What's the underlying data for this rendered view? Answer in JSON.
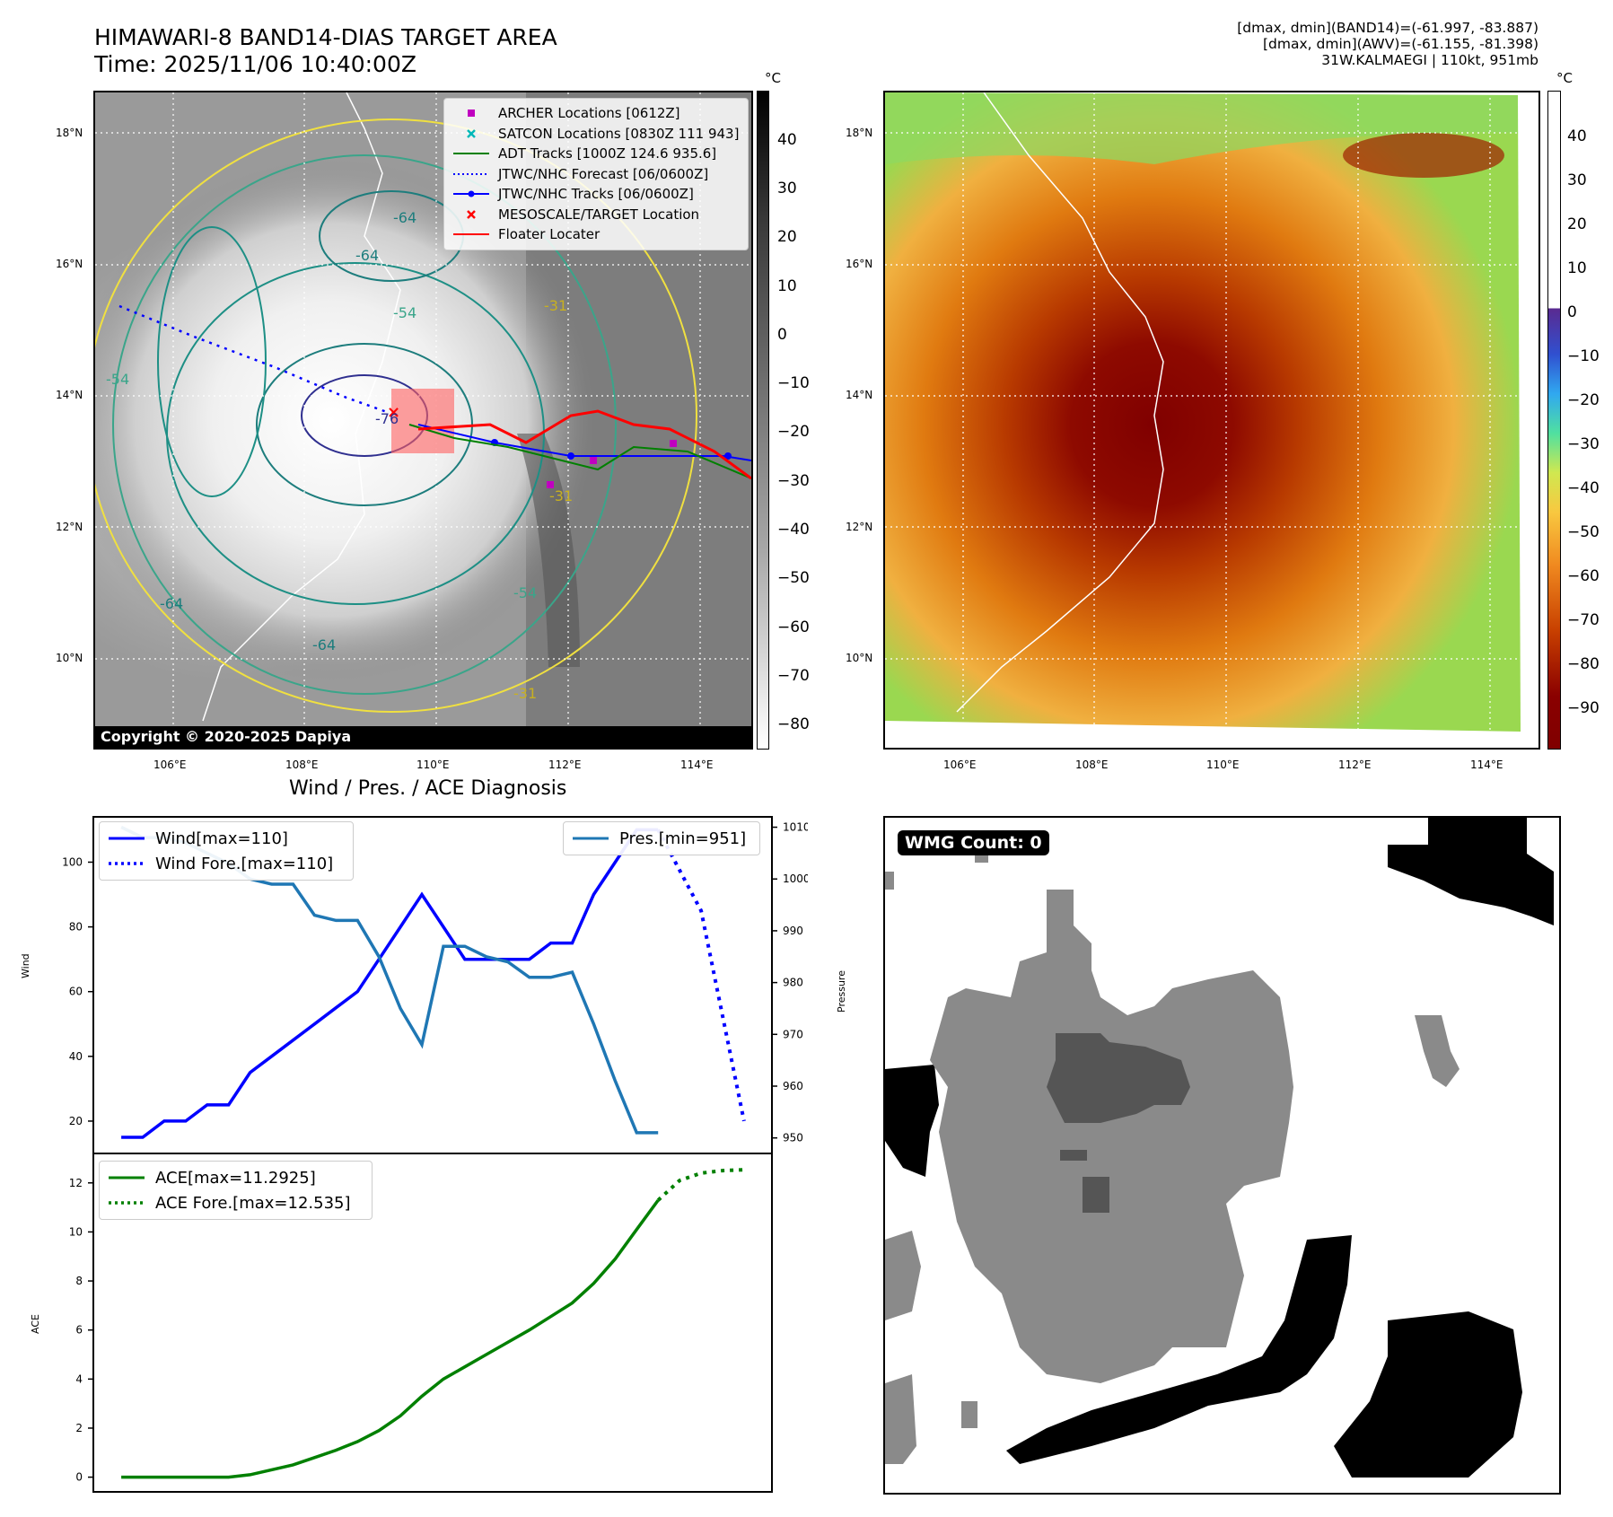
{
  "header": {
    "title_line1": "HIMAWARI-8 BAND14-DIAS TARGET AREA",
    "title_line2": "Time: 2025/11/06 10:40:00Z",
    "info_line1": "[dmax, dmin](BAND14)=(-61.997, -83.887)",
    "info_line2": "[dmax, dmin](AWV)=(-61.155, -81.398)",
    "info_line3": "31W.KALMAEGI | 110kt, 951mb"
  },
  "map_axes": {
    "lat_labels": [
      "18°N",
      "16°N",
      "14°N",
      "12°N",
      "10°N"
    ],
    "lon_labels": [
      "106°E",
      "108°E",
      "110°E",
      "112°E",
      "114°E"
    ]
  },
  "ir_panel": {
    "legend": [
      {
        "label": "ARCHER Locations [0612Z]",
        "symbol": "square",
        "color": "#c000c0"
      },
      {
        "label": "SATCON Locations [0830Z 111 943]",
        "symbol": "x",
        "color": "#00b8b8"
      },
      {
        "label": "ADT Tracks [1000Z 124.6 935.6]",
        "symbol": "line",
        "color": "#008000"
      },
      {
        "label": "JTWC/NHC Forecast [06/0600Z]",
        "symbol": "dotted",
        "color": "#0000ff"
      },
      {
        "label": "JTWC/NHC Tracks [06/0600Z]",
        "symbol": "line-dot",
        "color": "#0000ff"
      },
      {
        "label": "MESOSCALE/TARGET Location",
        "symbol": "x",
        "color": "#ff0000"
      },
      {
        "label": "Floater Locater",
        "symbol": "line",
        "color": "#ff0000"
      }
    ],
    "contour_labels": [
      "-64",
      "-64",
      "-54",
      "-31",
      "-64",
      "-64",
      "-54",
      "-54",
      "-31",
      "-31",
      "-76"
    ],
    "copyright": "Copyright © 2020-2025 Dapiya",
    "colorbar": {
      "unit": "°C",
      "ticks": [
        "40",
        "30",
        "20",
        "10",
        "0",
        "−10",
        "−20",
        "−30",
        "−40",
        "−50",
        "−60",
        "−70",
        "−80"
      ]
    }
  },
  "awv_panel": {
    "colorbar": {
      "unit": "°C",
      "ticks": [
        "40",
        "30",
        "20",
        "10",
        "0",
        "−10",
        "−20",
        "−30",
        "−40",
        "−50",
        "−60",
        "−70",
        "−80",
        "−90"
      ]
    }
  },
  "diagnosis": {
    "title": "Wind / Pres. / ACE Diagnosis",
    "wind_ylabel": "Wind",
    "pres_ylabel": "Pressure",
    "ace_ylabel": "ACE",
    "legend_wind": "Wind[max=110]",
    "legend_wind_fore": "Wind Fore.[max=110]",
    "legend_pres": "Pres.[min=951]",
    "legend_ace": "ACE[max=11.2925]",
    "legend_ace_fore": "ACE Fore.[max=12.535]"
  },
  "wmg_panel": {
    "count_label": "WMG Count: 0"
  },
  "colors": {
    "wind": "#0000ff",
    "pressure": "#1f77b4",
    "ace": "#008000"
  },
  "chart_data": [
    {
      "type": "line",
      "title": "Wind / Pres. / ACE Diagnosis",
      "x": [
        0,
        1,
        2,
        3,
        4,
        5,
        6,
        7,
        8,
        9,
        10,
        11,
        12,
        13,
        14,
        15,
        16,
        17,
        18,
        19,
        20,
        21,
        22,
        23,
        24,
        25
      ],
      "series": [
        {
          "name": "Wind[max=110]",
          "axis": "left",
          "values": [
            15,
            15,
            20,
            20,
            25,
            25,
            35,
            40,
            45,
            50,
            55,
            60,
            70,
            80,
            90,
            80,
            70,
            70,
            70,
            70,
            75,
            75,
            90,
            100,
            110,
            110
          ]
        },
        {
          "name": "Wind Fore.[max=110]",
          "axis": "left",
          "style": "dotted",
          "x": [
            25,
            27,
            29
          ],
          "values": [
            110,
            85,
            20
          ]
        },
        {
          "name": "Pres.[min=951]",
          "axis": "right",
          "values": [
            1010,
            1008,
            1008,
            1007,
            1005,
            1003,
            1000,
            999,
            999,
            993,
            992,
            992,
            985,
            975,
            968,
            987,
            987,
            985,
            984,
            981,
            981,
            982,
            972,
            961,
            951,
            951
          ]
        }
      ],
      "ylabel": "Wind",
      "y2label": "Pressure",
      "ylim": [
        10,
        114
      ],
      "y2lim": [
        947,
        1012
      ],
      "yticks": [
        20,
        40,
        60,
        80,
        100
      ],
      "y2ticks": [
        950,
        960,
        970,
        980,
        990,
        1000,
        1010
      ],
      "xlim": [
        -1.3,
        30.3
      ],
      "xlabel": ""
    },
    {
      "type": "line",
      "x": [
        0,
        1,
        2,
        3,
        4,
        5,
        6,
        7,
        8,
        9,
        10,
        11,
        12,
        13,
        14,
        15,
        16,
        17,
        18,
        19,
        20,
        21,
        22,
        23,
        24,
        25
      ],
      "series": [
        {
          "name": "ACE[max=11.2925]",
          "values": [
            0,
            0,
            0,
            0,
            0,
            0,
            0.1,
            0.3,
            0.5,
            0.8,
            1.1,
            1.45,
            1.9,
            2.5,
            3.3,
            4.0,
            4.5,
            5.0,
            5.5,
            6.0,
            6.55,
            7.1,
            7.9,
            8.9,
            10.1,
            11.2925
          ]
        },
        {
          "name": "ACE Fore.[max=12.535]",
          "style": "dotted",
          "x": [
            25,
            26,
            27,
            28,
            29
          ],
          "values": [
            11.2925,
            12.1,
            12.4,
            12.5,
            12.535
          ]
        }
      ],
      "ylabel": "ACE",
      "ylim": [
        -0.6,
        13.2
      ],
      "yticks": [
        0,
        2,
        4,
        6,
        8,
        10,
        12
      ],
      "xlim": [
        -1.3,
        30.3
      ],
      "xlabel": ""
    }
  ]
}
